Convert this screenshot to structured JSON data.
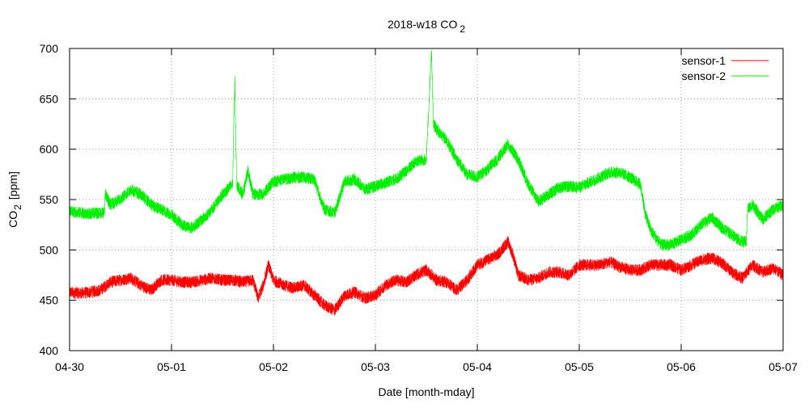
{
  "chart_data": {
    "type": "line",
    "title": "2018-w18 CO",
    "title_subscript": "2",
    "xlabel": "Date [month-mday]",
    "ylabel": "CO",
    "ylabel_subscript": "2",
    "ylabel_unit": "[ppm]",
    "xlim": [
      0,
      7
    ],
    "ylim": [
      400,
      700
    ],
    "grid": true,
    "legend_position": "top-right",
    "x_unit": "days since 04-30 00:00",
    "x_ticks": [
      {
        "v": 0,
        "label": "04-30"
      },
      {
        "v": 1,
        "label": "05-01"
      },
      {
        "v": 2,
        "label": "05-02"
      },
      {
        "v": 3,
        "label": "05-03"
      },
      {
        "v": 4,
        "label": "05-04"
      },
      {
        "v": 5,
        "label": "05-05"
      },
      {
        "v": 6,
        "label": "05-06"
      },
      {
        "v": 7,
        "label": "05-07"
      }
    ],
    "y_ticks": [
      {
        "v": 400,
        "label": "400"
      },
      {
        "v": 450,
        "label": "450"
      },
      {
        "v": 500,
        "label": "500"
      },
      {
        "v": 550,
        "label": "550"
      },
      {
        "v": 600,
        "label": "600"
      },
      {
        "v": 650,
        "label": "650"
      },
      {
        "v": 700,
        "label": "700"
      }
    ],
    "series": [
      {
        "name": "sensor-1",
        "color": "#ff0000",
        "points": [
          [
            0,
            458
          ],
          [
            0.1,
            457
          ],
          [
            0.2,
            458
          ],
          [
            0.3,
            460
          ],
          [
            0.4,
            468
          ],
          [
            0.5,
            470
          ],
          [
            0.6,
            472
          ],
          [
            0.7,
            465
          ],
          [
            0.8,
            460
          ],
          [
            0.9,
            470
          ],
          [
            1.0,
            470
          ],
          [
            1.1,
            468
          ],
          [
            1.2,
            468
          ],
          [
            1.3,
            470
          ],
          [
            1.4,
            472
          ],
          [
            1.5,
            470
          ],
          [
            1.6,
            470
          ],
          [
            1.7,
            468
          ],
          [
            1.8,
            470
          ],
          [
            1.85,
            452
          ],
          [
            1.9,
            465
          ],
          [
            1.95,
            485
          ],
          [
            2.0,
            470
          ],
          [
            2.1,
            465
          ],
          [
            2.2,
            462
          ],
          [
            2.3,
            465
          ],
          [
            2.4,
            455
          ],
          [
            2.5,
            445
          ],
          [
            2.6,
            440
          ],
          [
            2.7,
            455
          ],
          [
            2.8,
            458
          ],
          [
            2.9,
            452
          ],
          [
            3.0,
            455
          ],
          [
            3.1,
            465
          ],
          [
            3.2,
            470
          ],
          [
            3.3,
            468
          ],
          [
            3.4,
            475
          ],
          [
            3.5,
            480
          ],
          [
            3.6,
            470
          ],
          [
            3.7,
            468
          ],
          [
            3.8,
            460
          ],
          [
            3.9,
            470
          ],
          [
            4.0,
            485
          ],
          [
            4.1,
            490
          ],
          [
            4.2,
            495
          ],
          [
            4.3,
            508
          ],
          [
            4.35,
            495
          ],
          [
            4.4,
            475
          ],
          [
            4.5,
            470
          ],
          [
            4.6,
            472
          ],
          [
            4.7,
            478
          ],
          [
            4.8,
            478
          ],
          [
            4.9,
            475
          ],
          [
            5.0,
            485
          ],
          [
            5.1,
            485
          ],
          [
            5.2,
            485
          ],
          [
            5.3,
            488
          ],
          [
            5.4,
            483
          ],
          [
            5.5,
            480
          ],
          [
            5.6,
            480
          ],
          [
            5.7,
            485
          ],
          [
            5.8,
            485
          ],
          [
            5.9,
            485
          ],
          [
            6.0,
            480
          ],
          [
            6.1,
            485
          ],
          [
            6.2,
            490
          ],
          [
            6.3,
            492
          ],
          [
            6.4,
            487
          ],
          [
            6.5,
            478
          ],
          [
            6.6,
            472
          ],
          [
            6.7,
            485
          ],
          [
            6.8,
            478
          ],
          [
            6.9,
            482
          ],
          [
            7.0,
            475
          ]
        ]
      },
      {
        "name": "sensor-2",
        "color": "#00ee00",
        "points": [
          [
            0,
            538
          ],
          [
            0.1,
            537
          ],
          [
            0.2,
            536
          ],
          [
            0.3,
            537
          ],
          [
            0.34,
            537
          ],
          [
            0.35,
            555
          ],
          [
            0.4,
            545
          ],
          [
            0.5,
            550
          ],
          [
            0.6,
            560
          ],
          [
            0.7,
            555
          ],
          [
            0.8,
            545
          ],
          [
            0.9,
            540
          ],
          [
            1.0,
            535
          ],
          [
            1.1,
            525
          ],
          [
            1.2,
            522
          ],
          [
            1.3,
            530
          ],
          [
            1.4,
            540
          ],
          [
            1.5,
            555
          ],
          [
            1.6,
            565
          ],
          [
            1.62,
            672
          ],
          [
            1.64,
            565
          ],
          [
            1.7,
            555
          ],
          [
            1.75,
            578
          ],
          [
            1.8,
            555
          ],
          [
            1.9,
            555
          ],
          [
            2.0,
            568
          ],
          [
            2.1,
            570
          ],
          [
            2.2,
            572
          ],
          [
            2.3,
            572
          ],
          [
            2.4,
            570
          ],
          [
            2.5,
            540
          ],
          [
            2.6,
            537
          ],
          [
            2.7,
            568
          ],
          [
            2.8,
            570
          ],
          [
            2.9,
            560
          ],
          [
            3.0,
            563
          ],
          [
            3.1,
            567
          ],
          [
            3.2,
            570
          ],
          [
            3.3,
            578
          ],
          [
            3.4,
            588
          ],
          [
            3.5,
            590
          ],
          [
            3.55,
            697
          ],
          [
            3.57,
            625
          ],
          [
            3.6,
            620
          ],
          [
            3.7,
            608
          ],
          [
            3.8,
            590
          ],
          [
            3.9,
            575
          ],
          [
            4.0,
            572
          ],
          [
            4.1,
            580
          ],
          [
            4.2,
            590
          ],
          [
            4.3,
            605
          ],
          [
            4.4,
            590
          ],
          [
            4.5,
            565
          ],
          [
            4.6,
            548
          ],
          [
            4.7,
            555
          ],
          [
            4.8,
            562
          ],
          [
            4.9,
            563
          ],
          [
            5.0,
            562
          ],
          [
            5.1,
            567
          ],
          [
            5.2,
            572
          ],
          [
            5.3,
            577
          ],
          [
            5.4,
            577
          ],
          [
            5.5,
            572
          ],
          [
            5.6,
            565
          ],
          [
            5.65,
            535
          ],
          [
            5.7,
            520
          ],
          [
            5.8,
            505
          ],
          [
            5.9,
            505
          ],
          [
            6.0,
            510
          ],
          [
            6.1,
            515
          ],
          [
            6.2,
            525
          ],
          [
            6.3,
            532
          ],
          [
            6.4,
            522
          ],
          [
            6.5,
            515
          ],
          [
            6.6,
            508
          ],
          [
            6.64,
            508
          ],
          [
            6.65,
            540
          ],
          [
            6.7,
            545
          ],
          [
            6.8,
            530
          ],
          [
            6.9,
            540
          ],
          [
            7.0,
            545
          ]
        ]
      }
    ]
  }
}
